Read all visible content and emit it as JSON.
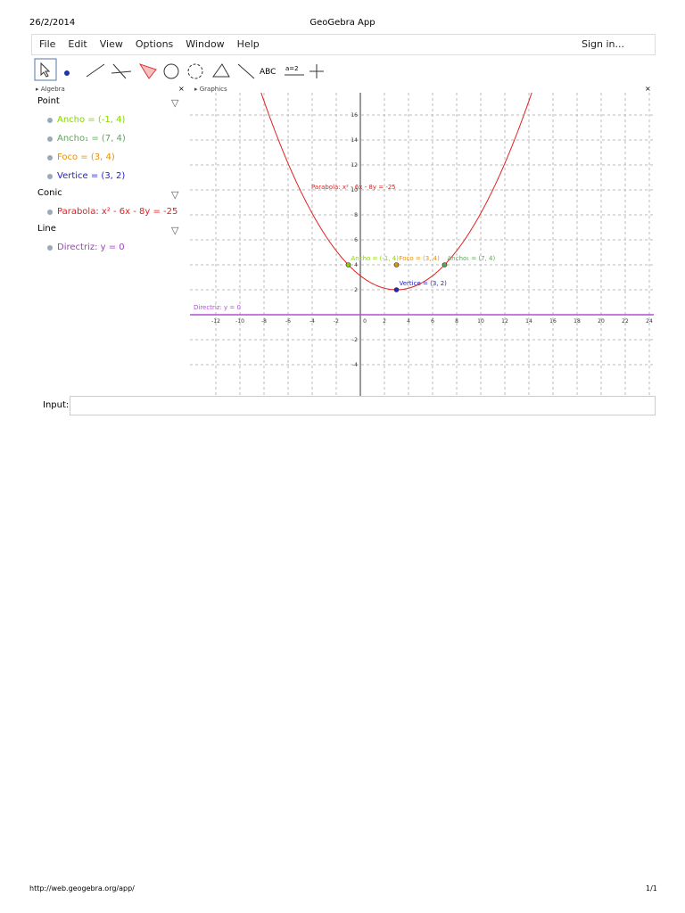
{
  "header": {
    "date": "26/2/2014",
    "title": "GeoGebra App"
  },
  "menu": {
    "items": [
      "File",
      "Edit",
      "View",
      "Options",
      "Window",
      "Help"
    ],
    "sign_in": "Sign in..."
  },
  "toolbar": {
    "text_tool": "ABC",
    "slider_tool": "a=2"
  },
  "algebra": {
    "title": "Algebra",
    "groups": [
      {
        "name": "Point",
        "items": [
          {
            "text": "Ancho = (-1, 4)",
            "color": "#86d400"
          },
          {
            "text": "Ancho₁ = (7, 4)",
            "color": "#5aa85a"
          },
          {
            "text": "Foco = (3, 4)",
            "color": "#e8900a"
          },
          {
            "text": "Vertice = (3, 2)",
            "color": "#2222c8"
          }
        ]
      },
      {
        "name": "Conic",
        "items": [
          {
            "text": "Parabola: x² - 6x - 8y = -25",
            "color": "#e02020"
          }
        ]
      },
      {
        "name": "Line",
        "items": [
          {
            "text": "Directriz: y = 0",
            "color": "#a040c8"
          }
        ]
      }
    ]
  },
  "graphics": {
    "title": "Graphics",
    "xticks": [
      -12,
      -10,
      -8,
      -6,
      -4,
      -2,
      0,
      2,
      4,
      6,
      8,
      10,
      12,
      14,
      16,
      18,
      20,
      22,
      24
    ],
    "yticks": [
      -4,
      -2,
      2,
      4,
      6,
      8,
      10,
      12,
      14,
      16
    ],
    "points": [
      {
        "label": "Ancho = (-1, 4)",
        "x": -1,
        "y": 4,
        "color": "#86d400"
      },
      {
        "label": "Ancho₁ = (7, 4)",
        "x": 7,
        "y": 4,
        "color": "#5aa85a"
      },
      {
        "label": "Foco = (3, 4)",
        "x": 3,
        "y": 4,
        "color": "#e8900a"
      },
      {
        "label": "Vertice = (3, 2)",
        "x": 3,
        "y": 2,
        "color": "#2222c8"
      }
    ],
    "parabola": {
      "label": "Parabola: x² - 6x - 8y = -25",
      "color": "#e02020"
    },
    "directrix": {
      "label": "Directriz: y = 0",
      "y": 0,
      "color": "#b050d0"
    }
  },
  "input": {
    "label": "Input:"
  },
  "footer": {
    "url": "http://web.geogebra.org/app/",
    "page": "1/1"
  }
}
